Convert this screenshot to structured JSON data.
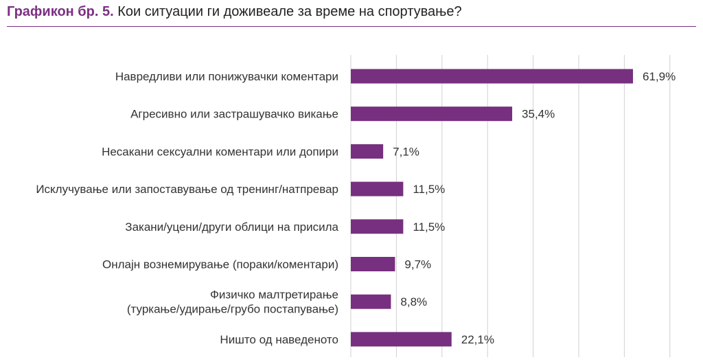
{
  "header": {
    "figure_label": "Графикон бр. 5.",
    "title": "Кои ситуации ги доживеале за време на спортување?"
  },
  "colors": {
    "bar": "#76307f",
    "accent": "#7b2f83",
    "grid": "#d0d0d0",
    "text": "#333333"
  },
  "chart_data": {
    "type": "bar",
    "orientation": "horizontal",
    "title": "Кои ситуации ги доживеале за време на спортување?",
    "xlabel": "",
    "ylabel": "",
    "xlim": [
      0,
      70
    ],
    "grid": true,
    "categories": [
      [
        "Навредливи или понижувачки коментари"
      ],
      [
        "Агресивно или застрашувачко викање"
      ],
      [
        "Несакани сексуални коментари или допири"
      ],
      [
        "Исклучување или запоставување од тренинг/натпревар"
      ],
      [
        "Закани/уцени/други облици на присила"
      ],
      [
        "Онлајн вознемирување (пораки/коментари)"
      ],
      [
        "Физичко малтретирање",
        "(туркање/удирање/грубо постапување)"
      ],
      [
        "Ништо од наведеното"
      ]
    ],
    "values": [
      61.9,
      35.4,
      7.1,
      11.5,
      11.5,
      9.7,
      8.8,
      22.1
    ],
    "value_labels": [
      "61,9%",
      "35,4%",
      "7,1%",
      "11,5%",
      "11,5%",
      "9,7%",
      "8,8%",
      "22,1%"
    ]
  }
}
